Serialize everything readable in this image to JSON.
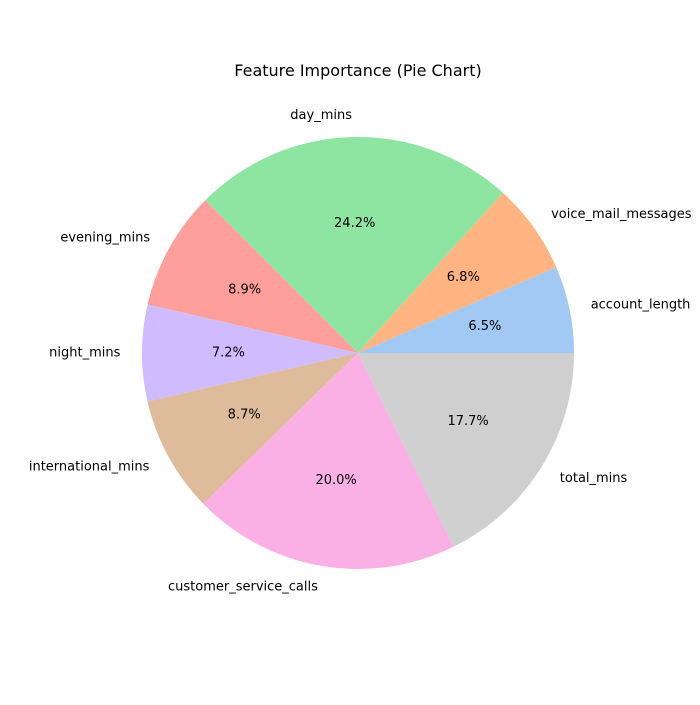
{
  "chart_data": {
    "type": "pie",
    "title": "Feature Importance (Pie Chart)",
    "categories": [
      "account_length",
      "voice_mail_messages",
      "day_mins",
      "evening_mins",
      "night_mins",
      "international_mins",
      "customer_service_calls",
      "total_mins"
    ],
    "values": [
      6.5,
      6.8,
      24.2,
      8.9,
      7.2,
      8.7,
      20.0,
      17.7
    ],
    "value_labels": [
      "6.5%",
      "6.8%",
      "24.2%",
      "8.9%",
      "7.2%",
      "8.7%",
      "20.0%",
      "17.7%"
    ],
    "colors": [
      "#a1c9f4",
      "#ffb482",
      "#8de5a1",
      "#ff9f9b",
      "#d0bbff",
      "#debb9b",
      "#fab0e4",
      "#cfcfcf"
    ],
    "start_angle_deg": 0,
    "direction": "counterclockwise",
    "legend": "none"
  }
}
